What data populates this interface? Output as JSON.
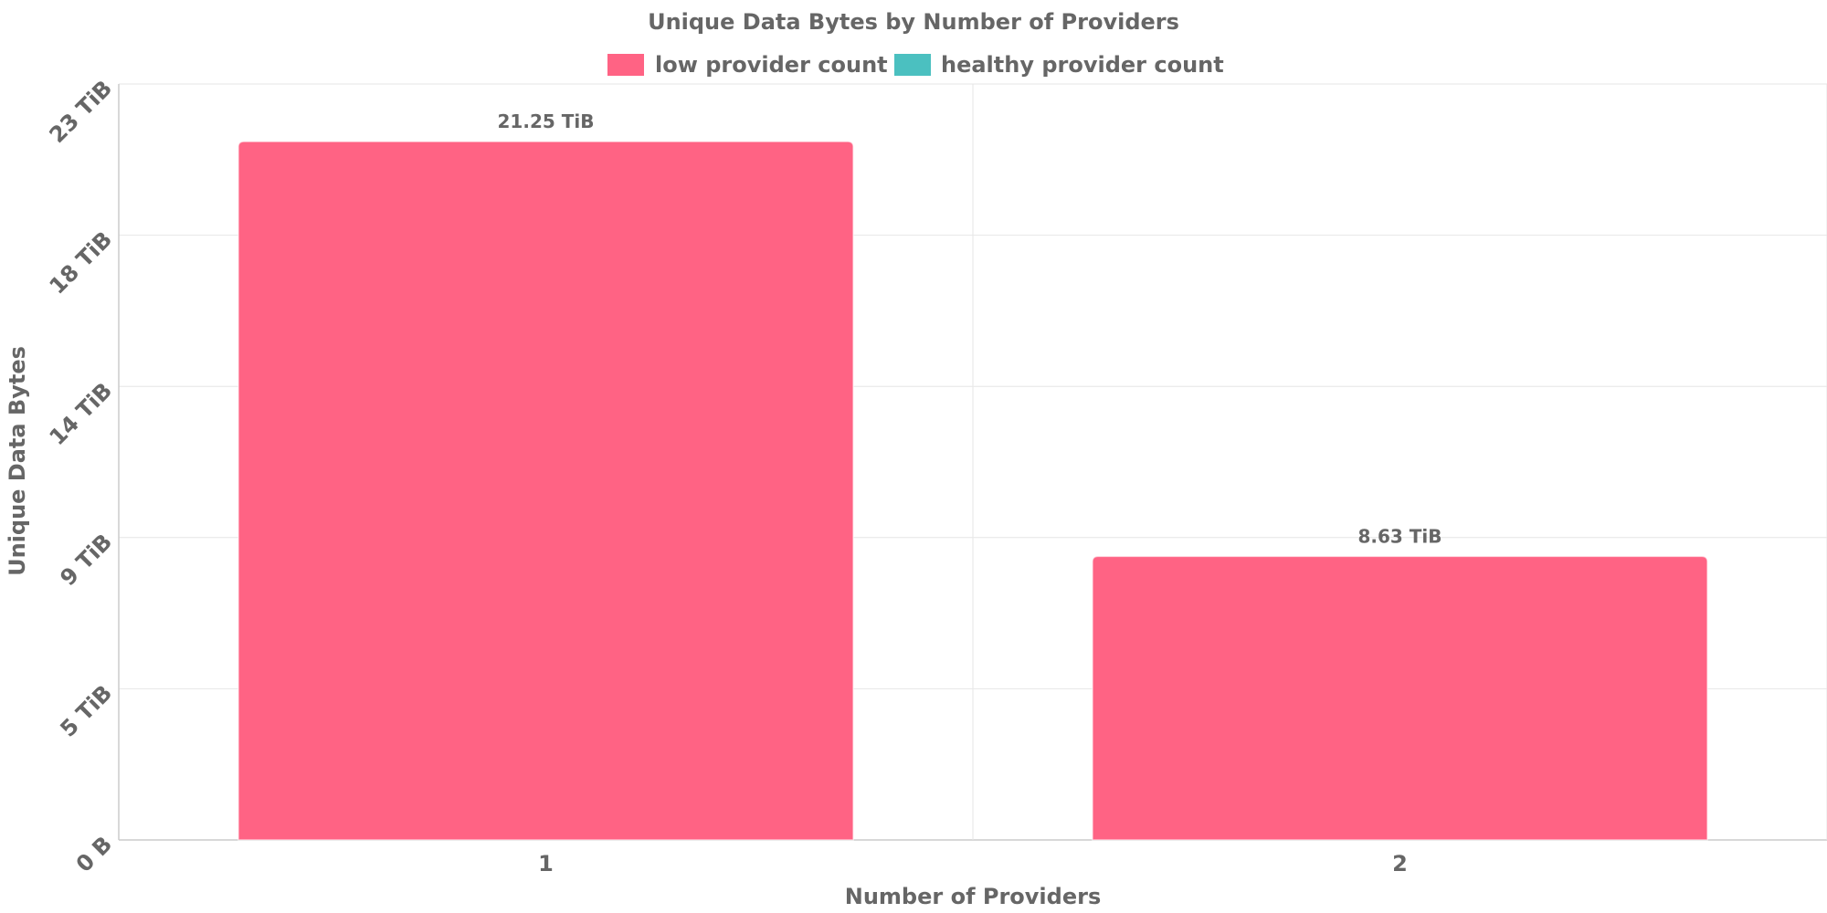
{
  "chart_data": {
    "type": "bar",
    "title": "Unique Data Bytes by Number of Providers",
    "xlabel": "Number of Providers",
    "ylabel": "Unique Data Bytes",
    "categories": [
      "1",
      "2"
    ],
    "series": [
      {
        "name": "low provider count",
        "color": "#ff6384",
        "values": [
          21.25,
          8.63
        ]
      },
      {
        "name": "healthy provider count",
        "color": "#4bc0c0",
        "values": [
          0,
          0
        ]
      }
    ],
    "value_unit": "TiB",
    "data_labels": [
      "21.25 TiB",
      "8.63 TiB"
    ],
    "y_ticks": [
      {
        "value": 0,
        "label": "0 B"
      },
      {
        "value": 4.6,
        "label": "5 TiB"
      },
      {
        "value": 9.2,
        "label": "9 TiB"
      },
      {
        "value": 13.8,
        "label": "14 TiB"
      },
      {
        "value": 18.4,
        "label": "18 TiB"
      },
      {
        "value": 23,
        "label": "23 TiB"
      }
    ],
    "ylim": [
      0,
      23
    ],
    "grid": true,
    "legend_position": "top"
  }
}
